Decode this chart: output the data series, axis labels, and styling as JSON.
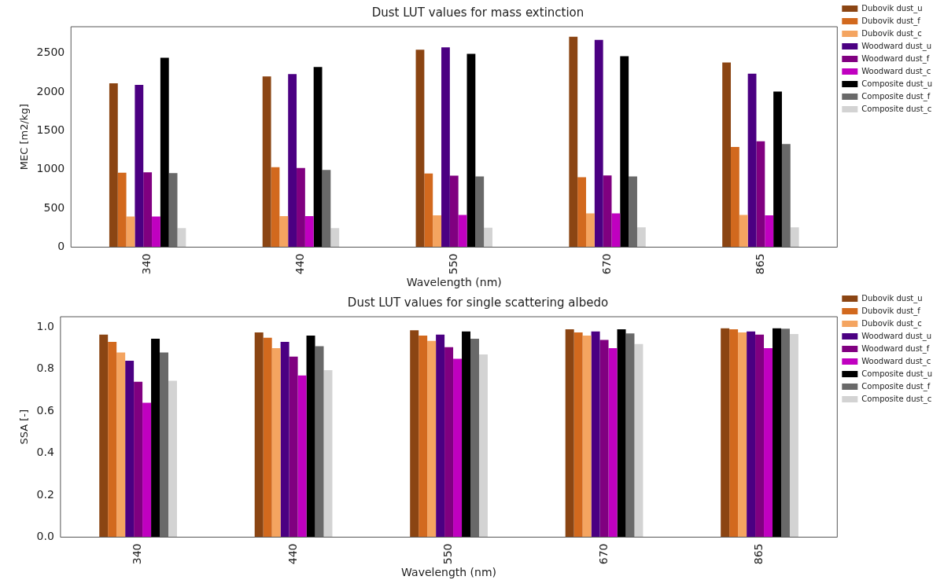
{
  "chart_data": [
    {
      "type": "bar",
      "title": "Dust LUT values for mass extinction",
      "xlabel": "Wavelength (nm)",
      "ylabel": "MEC [m2/kg]",
      "categories": [
        "340",
        "440",
        "550",
        "670",
        "865"
      ],
      "ylim": [
        0,
        2840
      ],
      "yticks": [
        0,
        500,
        1000,
        1500,
        2000,
        2500
      ],
      "grid": false,
      "legend": "top right",
      "series": [
        {
          "name": "Dubovik dust_u",
          "color": "#8b4513",
          "values": [
            2110,
            2200,
            2545,
            2710,
            2380
          ]
        },
        {
          "name": "Dubovik dust_f",
          "color": "#d2691e",
          "values": [
            960,
            1030,
            950,
            900,
            1290
          ]
        },
        {
          "name": "Dubovik dust_c",
          "color": "#f4a460",
          "values": [
            395,
            400,
            410,
            435,
            415
          ]
        },
        {
          "name": "Woodward dust_u",
          "color": "#4b0082",
          "values": [
            2090,
            2230,
            2575,
            2670,
            2235
          ]
        },
        {
          "name": "Woodward dust_f",
          "color": "#800080",
          "values": [
            965,
            1020,
            920,
            925,
            1365
          ]
        },
        {
          "name": "Woodward dust_c",
          "color": "#c000c0",
          "values": [
            395,
            400,
            415,
            435,
            410
          ]
        },
        {
          "name": "Composite dust_u",
          "color": "#000000",
          "values": [
            2440,
            2320,
            2490,
            2460,
            2005
          ]
        },
        {
          "name": "Composite dust_f",
          "color": "#696969",
          "values": [
            955,
            995,
            910,
            910,
            1330
          ]
        },
        {
          "name": "Composite dust_c",
          "color": "#d3d3d3",
          "values": [
            245,
            245,
            250,
            255,
            255
          ]
        }
      ]
    },
    {
      "type": "bar",
      "title": "Dust LUT values for single scattering albedo",
      "xlabel": "Wavelength (nm)",
      "ylabel": "SSA [-]",
      "categories": [
        "340",
        "440",
        "550",
        "670",
        "865"
      ],
      "ylim": [
        0,
        1.05
      ],
      "yticks": [
        {
          "value": 0,
          "label": "0.0"
        },
        0.2,
        0.4,
        0.6,
        0.8,
        {
          "value": 1,
          "label": "1.0"
        }
      ],
      "grid": false,
      "legend": "top right",
      "series": [
        {
          "name": "Dubovik dust_u",
          "color": "#8b4513",
          "values": [
            0.965,
            0.975,
            0.985,
            0.99,
            0.995
          ]
        },
        {
          "name": "Dubovik dust_f",
          "color": "#d2691e",
          "values": [
            0.93,
            0.95,
            0.96,
            0.975,
            0.99
          ]
        },
        {
          "name": "Dubovik dust_c",
          "color": "#f4a460",
          "values": [
            0.88,
            0.9,
            0.935,
            0.96,
            0.975
          ]
        },
        {
          "name": "Woodward dust_u",
          "color": "#4b0082",
          "values": [
            0.84,
            0.93,
            0.965,
            0.98,
            0.98
          ]
        },
        {
          "name": "Woodward dust_f",
          "color": "#800080",
          "values": [
            0.74,
            0.86,
            0.905,
            0.94,
            0.965
          ]
        },
        {
          "name": "Woodward dust_c",
          "color": "#c000c0",
          "values": [
            0.64,
            0.77,
            0.85,
            0.9,
            0.9
          ]
        },
        {
          "name": "Composite dust_u",
          "color": "#000000",
          "values": [
            0.945,
            0.96,
            0.98,
            0.99,
            0.995
          ]
        },
        {
          "name": "Composite dust_f",
          "color": "#696969",
          "values": [
            0.88,
            0.91,
            0.945,
            0.97,
            0.993
          ]
        },
        {
          "name": "Composite dust_c",
          "color": "#d3d3d3",
          "values": [
            0.745,
            0.795,
            0.87,
            0.92,
            0.968
          ]
        }
      ]
    }
  ]
}
